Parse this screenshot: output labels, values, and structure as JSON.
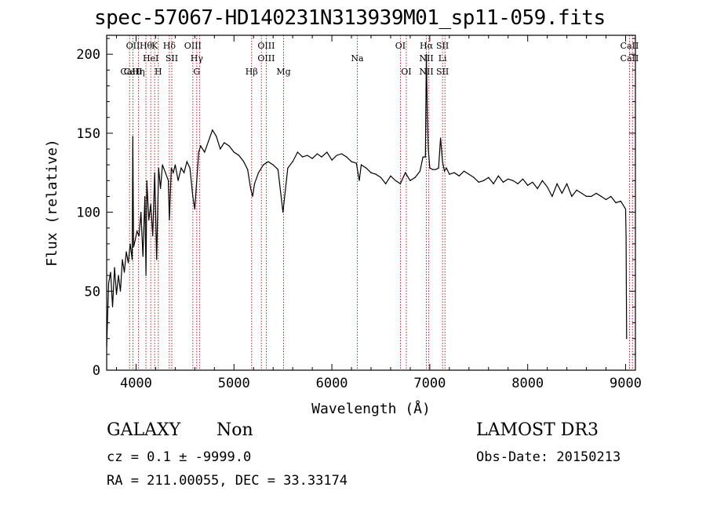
{
  "title": "spec-57067-HD140231N313939M01_sp11-059.fits",
  "info": {
    "class": "GALAXY",
    "subclass": "Non",
    "survey": "LAMOST DR3",
    "cz": "cz = 0.1 ± -9999.0",
    "obs_date": "Obs-Date: 20150213",
    "coords": "RA = 211.00055, DEC =  33.33174"
  },
  "chart_data": {
    "type": "line",
    "xlabel": "Wavelength (Å)",
    "ylabel": "Flux (relative)",
    "xlim": [
      3700,
      9100
    ],
    "ylim": [
      0,
      212
    ],
    "xticks": [
      4000,
      5000,
      6000,
      7000,
      8000,
      9000
    ],
    "yticks": [
      0,
      50,
      100,
      150,
      200
    ],
    "series": [
      {
        "x": [
          3700,
          3720,
          3740,
          3760,
          3780,
          3800,
          3820,
          3840,
          3860,
          3880,
          3900,
          3920,
          3940,
          3960,
          3967,
          3975,
          3990,
          4010,
          4030,
          4050,
          4070,
          4090,
          4101,
          4110,
          4130,
          4150,
          4170,
          4190,
          4210,
          4230,
          4250,
          4270,
          4300,
          4330,
          4340,
          4360,
          4380,
          4400,
          4430,
          4460,
          4490,
          4520,
          4550,
          4580,
          4600,
          4620,
          4640,
          4660,
          4700,
          4740,
          4780,
          4820,
          4860,
          4900,
          4950,
          5000,
          5050,
          5100,
          5140,
          5170,
          5190,
          5210,
          5250,
          5300,
          5350,
          5400,
          5450,
          5500,
          5550,
          5600,
          5650,
          5700,
          5750,
          5800,
          5850,
          5895,
          5950,
          6000,
          6050,
          6100,
          6150,
          6200,
          6250,
          6280,
          6300,
          6350,
          6400,
          6450,
          6500,
          6550,
          6600,
          6650,
          6700,
          6750,
          6800,
          6850,
          6900,
          6930,
          6955,
          6965,
          6975,
          6985,
          7000,
          7030,
          7060,
          7090,
          7110,
          7130,
          7150,
          7170,
          7200,
          7250,
          7300,
          7350,
          7400,
          7450,
          7500,
          7550,
          7600,
          7650,
          7700,
          7750,
          7800,
          7850,
          7900,
          7950,
          8000,
          8050,
          8100,
          8150,
          8200,
          8250,
          8300,
          8350,
          8400,
          8450,
          8500,
          8550,
          8600,
          8650,
          8700,
          8750,
          8800,
          8850,
          8900,
          8950,
          8990,
          9000,
          9005,
          9010
        ],
        "y": [
          15,
          55,
          62,
          40,
          65,
          48,
          60,
          50,
          70,
          62,
          75,
          68,
          80,
          70,
          148,
          78,
          82,
          88,
          85,
          100,
          72,
          110,
          60,
          120,
          95,
          105,
          85,
          125,
          70,
          128,
          115,
          130,
          125,
          120,
          95,
          128,
          125,
          130,
          120,
          128,
          125,
          132,
          128,
          110,
          102,
          120,
          138,
          142,
          138,
          145,
          152,
          148,
          140,
          144,
          142,
          138,
          136,
          132,
          127,
          115,
          110,
          118,
          125,
          130,
          132,
          130,
          127,
          100,
          128,
          132,
          138,
          135,
          136,
          134,
          137,
          135,
          138,
          133,
          136,
          137,
          135,
          132,
          131,
          120,
          130,
          128,
          125,
          124,
          122,
          118,
          123,
          120,
          118,
          125,
          120,
          122,
          126,
          135,
          135,
          200,
          160,
          140,
          128,
          127,
          127,
          128,
          147,
          132,
          126,
          128,
          124,
          125,
          123,
          126,
          124,
          122,
          119,
          120,
          122,
          118,
          123,
          119,
          121,
          120,
          118,
          121,
          117,
          119,
          115,
          120,
          116,
          110,
          118,
          112,
          118,
          110,
          114,
          112,
          110,
          110,
          112,
          110,
          108,
          110,
          106,
          107,
          103,
          102,
          85,
          20
        ]
      }
    ],
    "lines": [
      {
        "w": 3934,
        "labels": [
          "",
          "",
          "CaII"
        ]
      },
      {
        "w": 3968,
        "labels": [
          "OII",
          "",
          "CaII"
        ]
      },
      {
        "w": 4101,
        "labels": [
          "Hθ",
          "",
          ""
        ]
      },
      {
        "w": 4025,
        "labels": [
          "",
          "",
          "Hη"
        ]
      },
      {
        "w": 4150,
        "labels": [
          "",
          "HeI",
          ""
        ]
      },
      {
        "w": 4190,
        "labels": [
          "K",
          "",
          ""
        ]
      },
      {
        "w": 4227,
        "labels": [
          "",
          "",
          "H"
        ]
      },
      {
        "w": 4340,
        "labels": [
          "Hδ",
          "",
          ""
        ]
      },
      {
        "w": 4365,
        "labels": [
          "",
          "SII",
          ""
        ]
      },
      {
        "w": 4580,
        "labels": [
          "OIII",
          "",
          ""
        ]
      },
      {
        "w": 4620,
        "labels": [
          "",
          "Hγ",
          "G"
        ]
      },
      {
        "w": 4650,
        "labels": [
          "",
          "",
          ""
        ]
      },
      {
        "w": 5180,
        "labels": [
          "",
          "",
          "Hβ"
        ]
      },
      {
        "w": 5280,
        "labels": [
          "",
          "",
          ""
        ]
      },
      {
        "w": 5330,
        "labels": [
          "OIII",
          "OIII",
          ""
        ]
      },
      {
        "w": 5507,
        "labels": [
          "",
          "",
          "Mg"
        ]
      },
      {
        "w": 6260,
        "labels": [
          "",
          "Na",
          ""
        ]
      },
      {
        "w": 6700,
        "labels": [
          "OI",
          "",
          ""
        ]
      },
      {
        "w": 6760,
        "labels": [
          "",
          "",
          "OI"
        ]
      },
      {
        "w": 6965,
        "labels": [
          "Hα",
          "NII",
          "NII"
        ]
      },
      {
        "w": 6990,
        "labels": [
          "",
          "",
          ""
        ]
      },
      {
        "w": 7130,
        "labels": [
          "SII",
          "Li",
          "SII"
        ]
      },
      {
        "w": 7155,
        "labels": [
          "",
          "",
          ""
        ]
      },
      {
        "w": 9040,
        "labels": [
          "CaII",
          "CaII",
          ""
        ]
      },
      {
        "w": 9070,
        "labels": [
          "",
          "",
          ""
        ]
      }
    ]
  }
}
